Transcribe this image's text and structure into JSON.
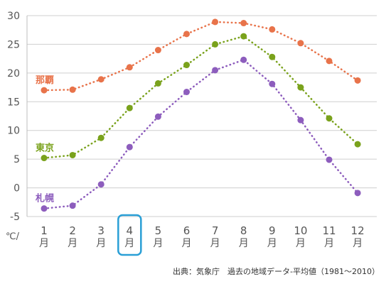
{
  "chart_data": {
    "type": "line",
    "categories": [
      "1",
      "2",
      "3",
      "4",
      "5",
      "6",
      "7",
      "8",
      "9",
      "10",
      "11",
      "12"
    ],
    "month_suffix": "月",
    "ylim": [
      -5,
      30
    ],
    "yticks": [
      30,
      25,
      20,
      15,
      10,
      5,
      0,
      -5
    ],
    "ylabel": "℃/",
    "grid": true,
    "highlighted_category": "4",
    "series": [
      {
        "name": "那覇",
        "color": "#e8734a",
        "values": [
          17.0,
          17.1,
          18.9,
          21.0,
          24.0,
          26.8,
          28.9,
          28.7,
          27.6,
          25.2,
          22.1,
          18.7
        ]
      },
      {
        "name": "東京",
        "color": "#7aa21c",
        "values": [
          5.2,
          5.7,
          8.7,
          13.9,
          18.2,
          21.4,
          25.0,
          26.4,
          22.8,
          17.5,
          12.1,
          7.6
        ]
      },
      {
        "name": "札幌",
        "color": "#8d5dbd",
        "values": [
          -3.6,
          -3.1,
          0.6,
          7.1,
          12.4,
          16.7,
          20.5,
          22.3,
          18.1,
          11.8,
          4.9,
          -0.9
        ]
      }
    ]
  },
  "footer": {
    "source": "出典：気象庁　過去の地域データ-平均値（1981〜2010）"
  }
}
